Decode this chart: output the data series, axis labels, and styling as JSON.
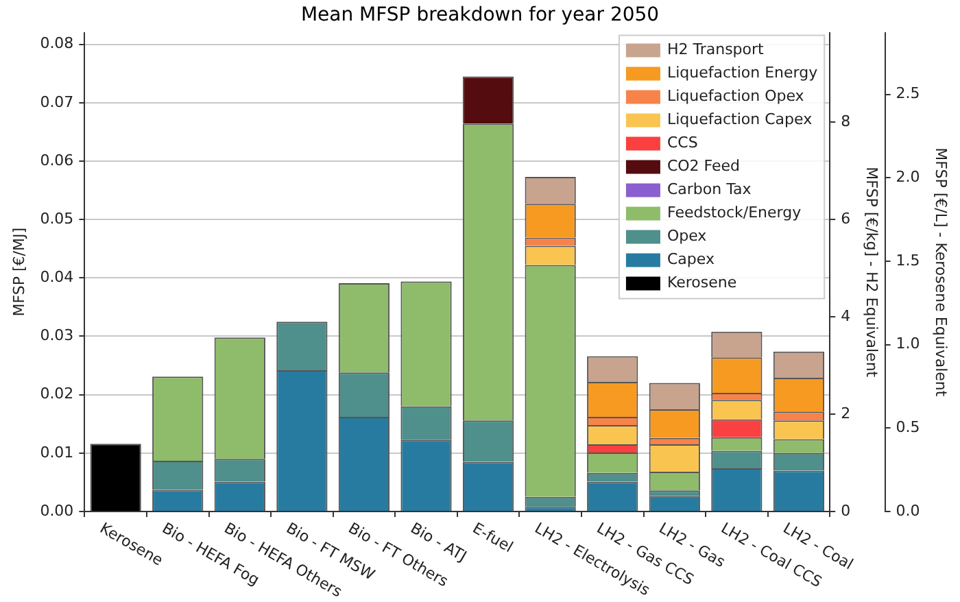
{
  "chart_data": {
    "type": "bar",
    "title": "Mean MFSP breakdown for year 2050",
    "ylabel": "MFSP [€/MJ]",
    "y2label": "MFSP [€/kg] - H2 Equivalent",
    "y3label": "MFSP [€/L] - Kerosene Equivalent",
    "categories": [
      "Kerosene",
      "Bio - HEFA Fog",
      "Bio - HEFA Others",
      "Bio - FT MSW",
      "Bio - FT Others",
      "Bio - ATJ",
      "E-fuel",
      "LH2 - Electrolysis",
      "LH2 - Gas CCS",
      "LH2 - Gas",
      "LH2 - Coal CCS",
      "LH2 - Coal"
    ],
    "stacked": true,
    "series": [
      {
        "name": "Kerosene",
        "color": "#000000",
        "values": [
          0.0116,
          null,
          null,
          null,
          null,
          null,
          null,
          null,
          null,
          null,
          null,
          null
        ]
      },
      {
        "name": "Capex",
        "color": "#277ba0",
        "values": [
          null,
          0.0037,
          0.0051,
          0.0242,
          0.0162,
          0.0123,
          0.0085,
          0.0008,
          0.0051,
          0.0026,
          0.0074,
          0.007
        ]
      },
      {
        "name": "Opex",
        "color": "#4f8f8c",
        "values": [
          null,
          0.005,
          0.0039,
          0.0083,
          0.0076,
          0.0057,
          0.0071,
          0.0017,
          0.0015,
          0.001,
          0.003,
          0.003
        ]
      },
      {
        "name": "Feedstock/Energy",
        "color": "#8fbc6a",
        "values": [
          null,
          0.0144,
          0.0208,
          null,
          0.0153,
          0.0214,
          0.0508,
          0.0397,
          0.0035,
          0.0032,
          0.0023,
          0.0024
        ]
      },
      {
        "name": "Carbon Tax",
        "color": "#8a5fcf",
        "values": [
          null,
          0,
          0,
          0,
          0,
          0,
          0,
          0,
          0,
          0,
          0,
          0
        ]
      },
      {
        "name": "CO2 Feed",
        "color": "#540c0e",
        "values": [
          null,
          null,
          null,
          null,
          null,
          null,
          0.0081,
          null,
          null,
          null,
          null,
          null
        ]
      },
      {
        "name": "CCS",
        "color": "#fa4040",
        "values": [
          null,
          null,
          null,
          null,
          null,
          null,
          null,
          null,
          0.0014,
          null,
          0.0031,
          null
        ]
      },
      {
        "name": "Liquefaction Capex",
        "color": "#f9c550",
        "values": [
          null,
          null,
          null,
          null,
          null,
          null,
          null,
          0.0033,
          0.0033,
          0.0047,
          0.0033,
          0.0032
        ]
      },
      {
        "name": "Liquefaction Opex",
        "color": "#f7834a",
        "values": [
          null,
          null,
          null,
          null,
          null,
          null,
          null,
          0.0014,
          0.0014,
          0.0011,
          0.0012,
          0.0015
        ]
      },
      {
        "name": "Liquefaction Energy",
        "color": "#f79a22",
        "values": [
          null,
          null,
          null,
          null,
          null,
          null,
          null,
          0.0058,
          0.006,
          0.0049,
          0.0061,
          0.0058
        ]
      },
      {
        "name": "H2 Transport",
        "color": "#c8a38e",
        "values": [
          null,
          null,
          null,
          null,
          null,
          null,
          null,
          0.0046,
          0.0044,
          0.0045,
          0.0044,
          0.0045
        ]
      }
    ],
    "ylim": [
      0,
      0.082
    ],
    "yticks": [
      {
        "value": 0,
        "label": "0.00"
      },
      0.01,
      0.02,
      0.03,
      0.04,
      0.05,
      0.06,
      0.07,
      0.08
    ],
    "y2lim": [
      0,
      9.84
    ],
    "y2ticks": [
      0,
      2,
      4,
      6,
      8
    ],
    "y3lim": [
      0,
      2.87
    ],
    "y3ticks": [
      {
        "value": 0,
        "label": "0.0"
      },
      0.5,
      {
        "value": 1,
        "label": "1.0"
      },
      1.5,
      {
        "value": 2,
        "label": "2.0"
      },
      2.5
    ],
    "grid": "y",
    "legend": "top right"
  }
}
